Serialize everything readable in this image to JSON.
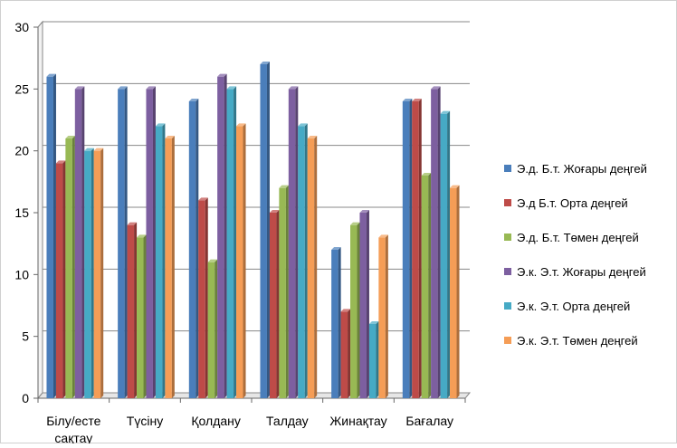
{
  "chart_data": {
    "type": "bar",
    "title": "",
    "xlabel": "",
    "ylabel": "",
    "ylim": [
      0,
      30
    ],
    "yticks": [
      "0",
      "5",
      "10",
      "15",
      "20",
      "25",
      "30"
    ],
    "grid": true,
    "legend_position": "right",
    "categories": [
      "Білу/есте сақтау",
      "Түсіну",
      "Қолдану",
      "Талдау",
      "Жинақтау",
      "Бағалау"
    ],
    "series": [
      {
        "name": "Э.д. Б.т. Жоғары деңгей",
        "color": "#4a7ebb",
        "values": [
          26,
          25,
          24,
          27,
          12,
          24
        ]
      },
      {
        "name": "Э.д Б.т. Орта деңгей",
        "color": "#be4b48",
        "values": [
          19,
          14,
          16,
          15,
          7,
          24
        ]
      },
      {
        "name": "Э.д. Б.т. Төмен деңгей",
        "color": "#98b954",
        "values": [
          21,
          13,
          11,
          17,
          14,
          18
        ]
      },
      {
        "name": "Э.к. Э.т. Жоғары деңгей",
        "color": "#7d5fa0",
        "values": [
          25,
          25,
          26,
          25,
          15,
          25
        ]
      },
      {
        "name": "Э.к. Э.т. Орта деңгей",
        "color": "#46aac5",
        "values": [
          20,
          22,
          25,
          22,
          6,
          23
        ]
      },
      {
        "name": "Э.к. Э.т. Төмен деңгей",
        "color": "#f59d56",
        "values": [
          20,
          21,
          22,
          21,
          13,
          17
        ]
      }
    ]
  }
}
